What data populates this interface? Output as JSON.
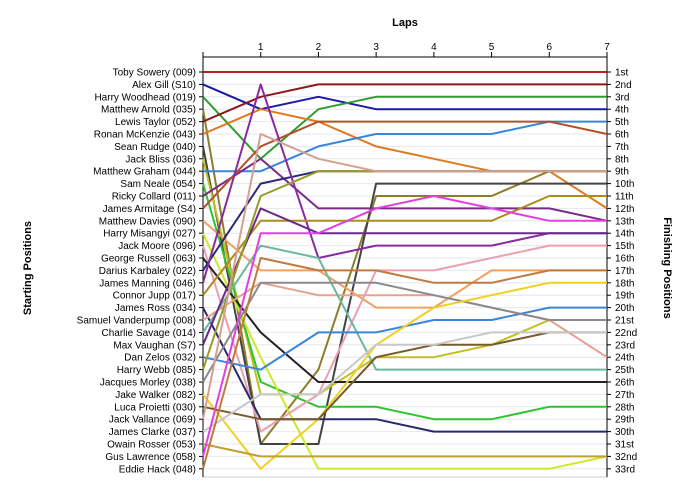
{
  "chart_data": {
    "type": "line",
    "title": "",
    "top_axis_title": "Laps",
    "left_axis_title": "Starting Positions",
    "right_axis_title": "Finishing Positions",
    "x_ticks": [
      "1",
      "2",
      "3",
      "4",
      "5",
      "6",
      "7"
    ],
    "start_labels": [
      "Toby Sowery (009)",
      "Alex Gill (S10)",
      "Harry Woodhead (019)",
      "Matthew Arnold (035)",
      "Lewis Taylor (052)",
      "Ronan McKenzie (043)",
      "Sean Rudge (040)",
      "Jack Bliss (036)",
      "Matthew Graham (044)",
      "Sam Neale (054)",
      "Ricky Collard (011)",
      "James Armitage (S4)",
      "Matthew Davies (090)",
      "Harry Misangyi (027)",
      "Jack Moore (096)",
      "George Russell (063)",
      "Darius Karbaley (022)",
      "James Manning (046)",
      "Connor Jupp (017)",
      "James Ross (034)",
      "Samuel Vanderpump (008)",
      "Charlie Savage (014)",
      "Max Vaughan (S7)",
      "Dan Zelos (032)",
      "Harry Webb (085)",
      "Jacques Morley (038)",
      "Jake Walker (082)",
      "Luca Proietti (030)",
      "Jack Vallance (069)",
      "James Clarke (037)",
      "Owain Rosser (053)",
      "Gus Lawrence (058)",
      "Eddie Hack (048)"
    ],
    "finish_labels": [
      "1st",
      "2nd",
      "3rd",
      "4th",
      "5th",
      "6th",
      "7th",
      "8th",
      "9th",
      "10th",
      "11th",
      "12th",
      "13th",
      "14th",
      "15th",
      "16th",
      "17th",
      "18th",
      "19th",
      "20th",
      "21st",
      "22nd",
      "23rd",
      "24th",
      "25th",
      "26th",
      "27th",
      "28th",
      "29th",
      "30th",
      "31st",
      "32nd",
      "33rd"
    ],
    "series": [
      {
        "values": [
          1,
          1,
          1,
          1,
          1,
          1,
          1,
          1
        ],
        "color": "#b22222"
      },
      {
        "values": [
          2,
          4,
          3,
          4,
          4,
          4,
          4,
          4
        ],
        "color": "#1a1aa6"
      },
      {
        "values": [
          3,
          8,
          4,
          3,
          3,
          3,
          3,
          3
        ],
        "color": "#2e9e2e"
      },
      {
        "values": [
          4,
          31,
          25,
          11,
          11,
          11,
          9,
          9
        ],
        "color": "#8b7d2a"
      },
      {
        "values": [
          5,
          3,
          2,
          2,
          2,
          2,
          2,
          2
        ],
        "color": "#8b1a1a"
      },
      {
        "values": [
          6,
          4,
          5,
          7,
          8,
          9,
          9,
          12
        ],
        "color": "#e07a1f"
      },
      {
        "values": [
          7,
          31,
          31,
          10,
          10,
          10,
          10,
          10
        ],
        "color": "#444444"
      },
      {
        "values": [
          8,
          27,
          27,
          24,
          24,
          23,
          21,
          21
        ],
        "color": "#c0c020"
      },
      {
        "values": [
          9,
          9,
          7,
          6,
          6,
          6,
          5,
          5
        ],
        "color": "#3a86d8"
      },
      {
        "values": [
          10,
          26,
          28,
          28,
          29,
          29,
          28,
          28
        ],
        "color": "#2ec42e"
      },
      {
        "values": [
          11,
          8,
          12,
          12,
          12,
          12,
          12,
          13
        ],
        "color": "#7b2a8b"
      },
      {
        "values": [
          12,
          7,
          5,
          5,
          5,
          5,
          5,
          6
        ],
        "color": "#b0522a"
      },
      {
        "values": [
          13,
          17,
          17,
          20,
          20,
          17,
          17,
          17
        ],
        "color": "#f0a060"
      },
      {
        "values": [
          14,
          24,
          33,
          33,
          33,
          33,
          33,
          32
        ],
        "color": "#cfe82a"
      },
      {
        "values": [
          15,
          30,
          27,
          17,
          17,
          16,
          15,
          15
        ],
        "color": "#eaa0b0"
      },
      {
        "values": [
          16,
          22,
          26,
          26,
          26,
          26,
          26,
          26
        ],
        "color": "#222222"
      },
      {
        "values": [
          17,
          10,
          9,
          9,
          9,
          9,
          9,
          9
        ],
        "color": "#2a2a7a"
      },
      {
        "values": [
          18,
          2,
          16,
          15,
          15,
          15,
          14,
          14
        ],
        "color": "#8b2aa0"
      },
      {
        "values": [
          19,
          13,
          13,
          13,
          13,
          13,
          11,
          11
        ],
        "color": "#b08a1f"
      },
      {
        "values": [
          20,
          29,
          29,
          29,
          30,
          30,
          30,
          30
        ],
        "color": "#2a2a6a"
      },
      {
        "values": [
          21,
          18,
          19,
          19,
          19,
          20,
          21,
          24
        ],
        "color": "#e8a090"
      },
      {
        "values": [
          22,
          15,
          16,
          25,
          25,
          25,
          25,
          25
        ],
        "color": "#6ab8a0"
      },
      {
        "values": [
          23,
          12,
          14,
          14,
          14,
          14,
          14,
          14
        ],
        "color": "#6a2a8a"
      },
      {
        "values": [
          24,
          25,
          22,
          22,
          21,
          21,
          20,
          20
        ],
        "color": "#3a86d8"
      },
      {
        "values": [
          25,
          11,
          9,
          9,
          9,
          9,
          9,
          9
        ],
        "color": "#9a9a2a"
      },
      {
        "values": [
          26,
          18,
          18,
          18,
          19,
          20,
          21,
          21
        ],
        "color": "#8a8a8a"
      },
      {
        "values": [
          27,
          33,
          29,
          23,
          20,
          19,
          18,
          18
        ],
        "color": "#f0d020"
      },
      {
        "values": [
          28,
          29,
          29,
          24,
          23,
          23,
          22,
          22
        ],
        "color": "#7a5a2a"
      },
      {
        "values": [
          29,
          6,
          8,
          9,
          9,
          9,
          9,
          9
        ],
        "color": "#d4a090"
      },
      {
        "values": [
          30,
          27,
          27,
          23,
          23,
          22,
          22,
          22
        ],
        "color": "#c8c8c8"
      },
      {
        "values": [
          31,
          32,
          32,
          32,
          32,
          32,
          32,
          32
        ],
        "color": "#c0a030"
      },
      {
        "values": [
          32,
          14,
          14,
          12,
          11,
          12,
          13,
          13
        ],
        "color": "#e040e0"
      },
      {
        "values": [
          33,
          16,
          17,
          17,
          18,
          18,
          17,
          17
        ],
        "color": "#c07a40"
      }
    ]
  }
}
